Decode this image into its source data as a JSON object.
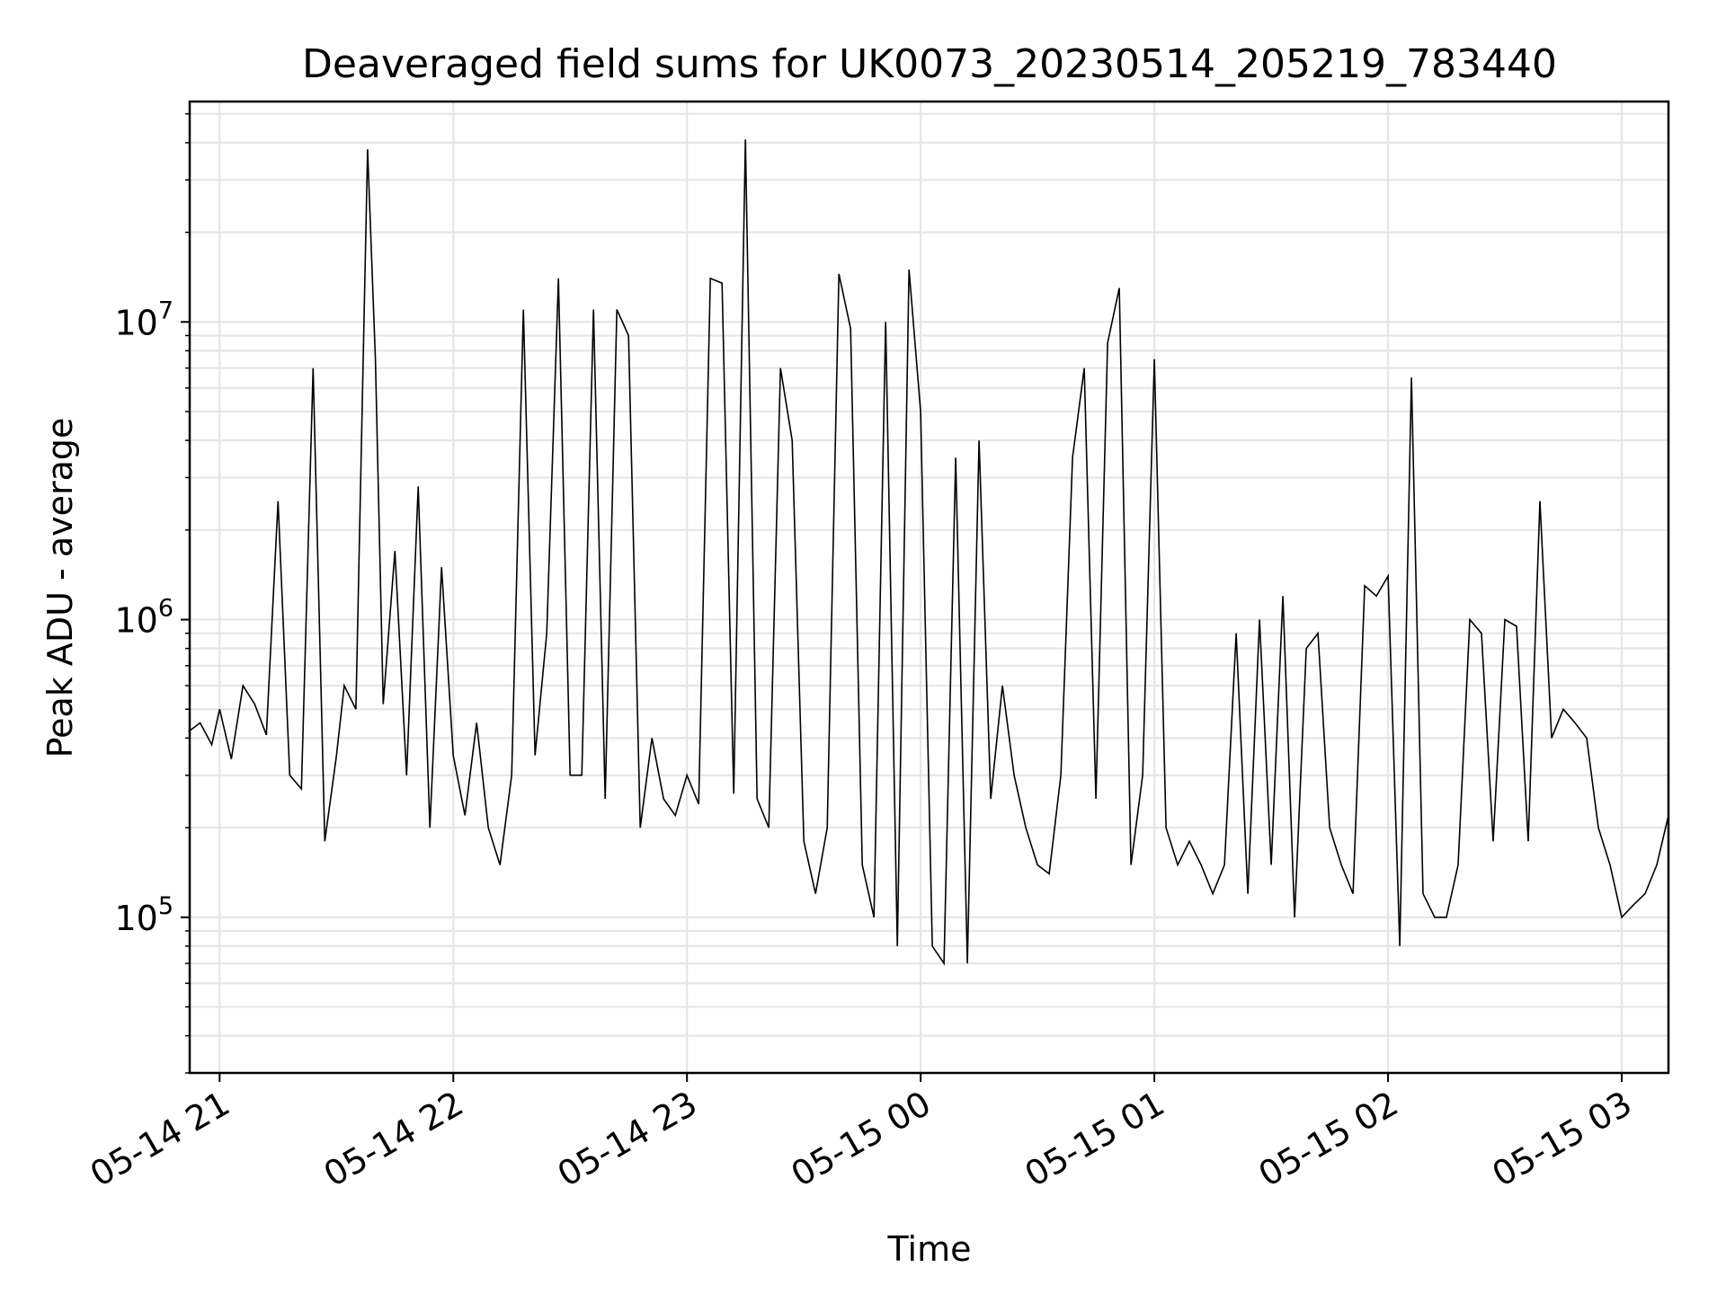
{
  "chart_data": {
    "type": "line",
    "title": "Deaveraged field sums for UK0073_20230514_205219_783440",
    "xlabel": "Time",
    "ylabel": "Peak ADU - average",
    "yscale": "log",
    "grid": true,
    "line_color": "#000000",
    "grid_color": "#e6e6e6",
    "xlim": [
      "2023-05-14 20:52:19",
      "2023-05-15 03:12:00"
    ],
    "ylim": [
      30000,
      55000000
    ],
    "x_ticks": [
      {
        "value": "2023-05-14 21:00",
        "label": "05-14 21"
      },
      {
        "value": "2023-05-14 22:00",
        "label": "05-14 22"
      },
      {
        "value": "2023-05-14 23:00",
        "label": "05-14 23"
      },
      {
        "value": "2023-05-15 00:00",
        "label": "05-15 00"
      },
      {
        "value": "2023-05-15 01:00",
        "label": "05-15 01"
      },
      {
        "value": "2023-05-15 02:00",
        "label": "05-15 02"
      },
      {
        "value": "2023-05-15 03:00",
        "label": "05-15 03"
      }
    ],
    "y_ticks": [
      {
        "value": 100000,
        "base": "10",
        "exp": "5"
      },
      {
        "value": 1000000,
        "base": "10",
        "exp": "6"
      },
      {
        "value": 10000000,
        "base": "10",
        "exp": "7"
      }
    ],
    "series": [
      {
        "x": [
          "2023-05-14 20:52",
          "2023-05-14 20:55",
          "2023-05-14 20:58",
          "2023-05-14 21:00",
          "2023-05-14 21:03",
          "2023-05-14 21:06",
          "2023-05-14 21:09",
          "2023-05-14 21:12",
          "2023-05-14 21:15",
          "2023-05-14 21:18",
          "2023-05-14 21:21",
          "2023-05-14 21:24",
          "2023-05-14 21:27",
          "2023-05-14 21:30",
          "2023-05-14 21:32",
          "2023-05-14 21:35",
          "2023-05-14 21:38",
          "2023-05-14 21:40",
          "2023-05-14 21:42",
          "2023-05-14 21:45",
          "2023-05-14 21:48",
          "2023-05-14 21:51",
          "2023-05-14 21:54",
          "2023-05-14 21:57",
          "2023-05-14 22:00",
          "2023-05-14 22:03",
          "2023-05-14 22:06",
          "2023-05-14 22:09",
          "2023-05-14 22:12",
          "2023-05-14 22:15",
          "2023-05-14 22:18",
          "2023-05-14 22:21",
          "2023-05-14 22:24",
          "2023-05-14 22:27",
          "2023-05-14 22:30",
          "2023-05-14 22:33",
          "2023-05-14 22:36",
          "2023-05-14 22:39",
          "2023-05-14 22:42",
          "2023-05-14 22:45",
          "2023-05-14 22:48",
          "2023-05-14 22:51",
          "2023-05-14 22:54",
          "2023-05-14 22:57",
          "2023-05-14 23:00",
          "2023-05-14 23:03",
          "2023-05-14 23:06",
          "2023-05-14 23:09",
          "2023-05-14 23:12",
          "2023-05-14 23:15",
          "2023-05-14 23:18",
          "2023-05-14 23:21",
          "2023-05-14 23:24",
          "2023-05-14 23:27",
          "2023-05-14 23:30",
          "2023-05-14 23:33",
          "2023-05-14 23:36",
          "2023-05-14 23:39",
          "2023-05-14 23:42",
          "2023-05-14 23:45",
          "2023-05-14 23:48",
          "2023-05-14 23:51",
          "2023-05-14 23:54",
          "2023-05-14 23:57",
          "2023-05-15 00:00",
          "2023-05-15 00:03",
          "2023-05-15 00:06",
          "2023-05-15 00:09",
          "2023-05-15 00:12",
          "2023-05-15 00:15",
          "2023-05-15 00:18",
          "2023-05-15 00:21",
          "2023-05-15 00:24",
          "2023-05-15 00:27",
          "2023-05-15 00:30",
          "2023-05-15 00:33",
          "2023-05-15 00:36",
          "2023-05-15 00:39",
          "2023-05-15 00:42",
          "2023-05-15 00:45",
          "2023-05-15 00:48",
          "2023-05-15 00:51",
          "2023-05-15 00:54",
          "2023-05-15 00:57",
          "2023-05-15 01:00",
          "2023-05-15 01:03",
          "2023-05-15 01:06",
          "2023-05-15 01:09",
          "2023-05-15 01:12",
          "2023-05-15 01:15",
          "2023-05-15 01:18",
          "2023-05-15 01:21",
          "2023-05-15 01:24",
          "2023-05-15 01:27",
          "2023-05-15 01:30",
          "2023-05-15 01:33",
          "2023-05-15 01:36",
          "2023-05-15 01:39",
          "2023-05-15 01:42",
          "2023-05-15 01:45",
          "2023-05-15 01:48",
          "2023-05-15 01:51",
          "2023-05-15 01:54",
          "2023-05-15 01:57",
          "2023-05-15 02:00",
          "2023-05-15 02:03",
          "2023-05-15 02:06",
          "2023-05-15 02:09",
          "2023-05-15 02:12",
          "2023-05-15 02:15",
          "2023-05-15 02:18",
          "2023-05-15 02:21",
          "2023-05-15 02:24",
          "2023-05-15 02:27",
          "2023-05-15 02:30",
          "2023-05-15 02:33",
          "2023-05-15 02:36",
          "2023-05-15 02:39",
          "2023-05-15 02:42",
          "2023-05-15 02:45",
          "2023-05-15 02:48",
          "2023-05-15 02:51",
          "2023-05-15 02:54",
          "2023-05-15 02:57",
          "2023-05-15 03:00",
          "2023-05-15 03:03",
          "2023-05-15 03:06",
          "2023-05-15 03:09",
          "2023-05-15 03:12"
        ],
        "values": [
          420000,
          450000,
          380000,
          500000,
          340000,
          600000,
          520000,
          410000,
          2500000,
          300000,
          270000,
          7000000,
          180000,
          350000,
          600000,
          500000,
          38000000,
          7500000,
          520000,
          1700000,
          300000,
          2800000,
          200000,
          1500000,
          350000,
          220000,
          450000,
          200000,
          150000,
          300000,
          11000000,
          350000,
          900000,
          14000000,
          300000,
          300000,
          11000000,
          250000,
          11000000,
          9000000,
          200000,
          400000,
          250000,
          220000,
          300000,
          240000,
          14000000,
          13500000,
          260000,
          41000000,
          250000,
          200000,
          7000000,
          4000000,
          180000,
          120000,
          200000,
          14500000,
          9500000,
          150000,
          100000,
          10000000,
          80000,
          15000000,
          5000000,
          80000,
          70000,
          3500000,
          70000,
          4000000,
          250000,
          600000,
          300000,
          200000,
          150000,
          140000,
          300000,
          3500000,
          7000000,
          250000,
          8500000,
          13000000,
          150000,
          300000,
          7500000,
          200000,
          150000,
          180000,
          150000,
          120000,
          150000,
          900000,
          120000,
          1000000,
          150000,
          1200000,
          100000,
          800000,
          900000,
          200000,
          150000,
          120000,
          1300000,
          1200000,
          1400000,
          80000,
          6500000,
          120000,
          100000,
          100000,
          150000,
          1000000,
          900000,
          180000,
          1000000,
          950000,
          180000,
          2500000,
          400000,
          500000,
          450000,
          400000,
          200000,
          150000,
          100000,
          110000,
          120000,
          150000,
          220000
        ]
      }
    ]
  }
}
